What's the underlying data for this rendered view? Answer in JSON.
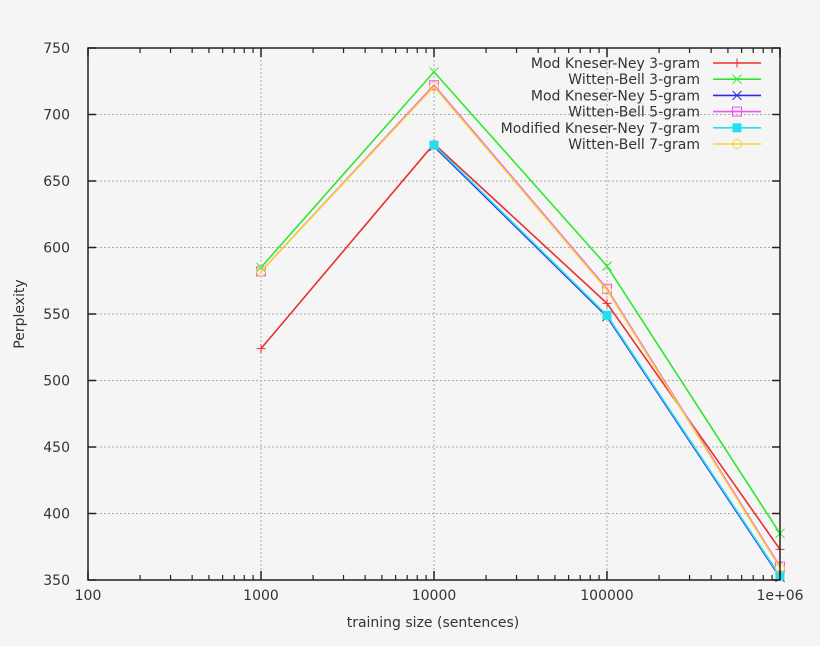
{
  "chart_data": {
    "type": "line",
    "title": "",
    "xlabel": "training size (sentences)",
    "ylabel": "Perplexity",
    "xscale": "log",
    "xlim": [
      100,
      1000000
    ],
    "ylim": [
      350,
      750
    ],
    "grid": true,
    "legend_position": "top-right",
    "x_ticks": [
      {
        "value": 100,
        "label": "100"
      },
      {
        "value": 1000,
        "label": "1000"
      },
      {
        "value": 10000,
        "label": "10000"
      },
      {
        "value": 100000,
        "label": "100000"
      },
      {
        "value": 1000000,
        "label": "1e+06"
      }
    ],
    "y_ticks": [
      {
        "value": 350,
        "label": "350"
      },
      {
        "value": 400,
        "label": "400"
      },
      {
        "value": 450,
        "label": "450"
      },
      {
        "value": 500,
        "label": "500"
      },
      {
        "value": 550,
        "label": "550"
      },
      {
        "value": 600,
        "label": "600"
      },
      {
        "value": 650,
        "label": "650"
      },
      {
        "value": 700,
        "label": "700"
      },
      {
        "value": 750,
        "label": "750"
      }
    ],
    "series": [
      {
        "name": "Mod Kneser-Ney 3-gram",
        "color": "#e8312f",
        "marker": "plus",
        "x": [
          1000,
          10000,
          100000,
          1000000
        ],
        "values": [
          524,
          678,
          558,
          373
        ]
      },
      {
        "name": "Witten-Bell 3-gram",
        "color": "#2ee82e",
        "marker": "cross",
        "x": [
          1000,
          10000,
          100000,
          1000000
        ],
        "values": [
          585,
          732,
          586,
          385
        ]
      },
      {
        "name": "Mod Kneser-Ney 5-gram",
        "color": "#2a2ae8",
        "marker": "star",
        "x": [
          10000,
          100000,
          1000000
        ],
        "values": [
          676,
          548,
          352
        ]
      },
      {
        "name": "Witten-Bell 5-gram",
        "color": "#ee55ee",
        "marker": "square-open",
        "x": [
          1000,
          10000,
          100000,
          1000000
        ],
        "values": [
          582,
          722,
          569,
          360
        ]
      },
      {
        "name": "Modified Kneser-Ney 7-gram",
        "color": "#22e0f0",
        "marker": "square-filled",
        "x": [
          10000,
          100000,
          1000000
        ],
        "values": [
          677,
          549,
          353
        ]
      },
      {
        "name": "Witten-Bell 7-gram",
        "color": "#f5d33a",
        "marker": "circle-open",
        "x": [
          1000,
          10000,
          100000,
          1000000
        ],
        "values": [
          582,
          721,
          568,
          359
        ]
      }
    ]
  }
}
